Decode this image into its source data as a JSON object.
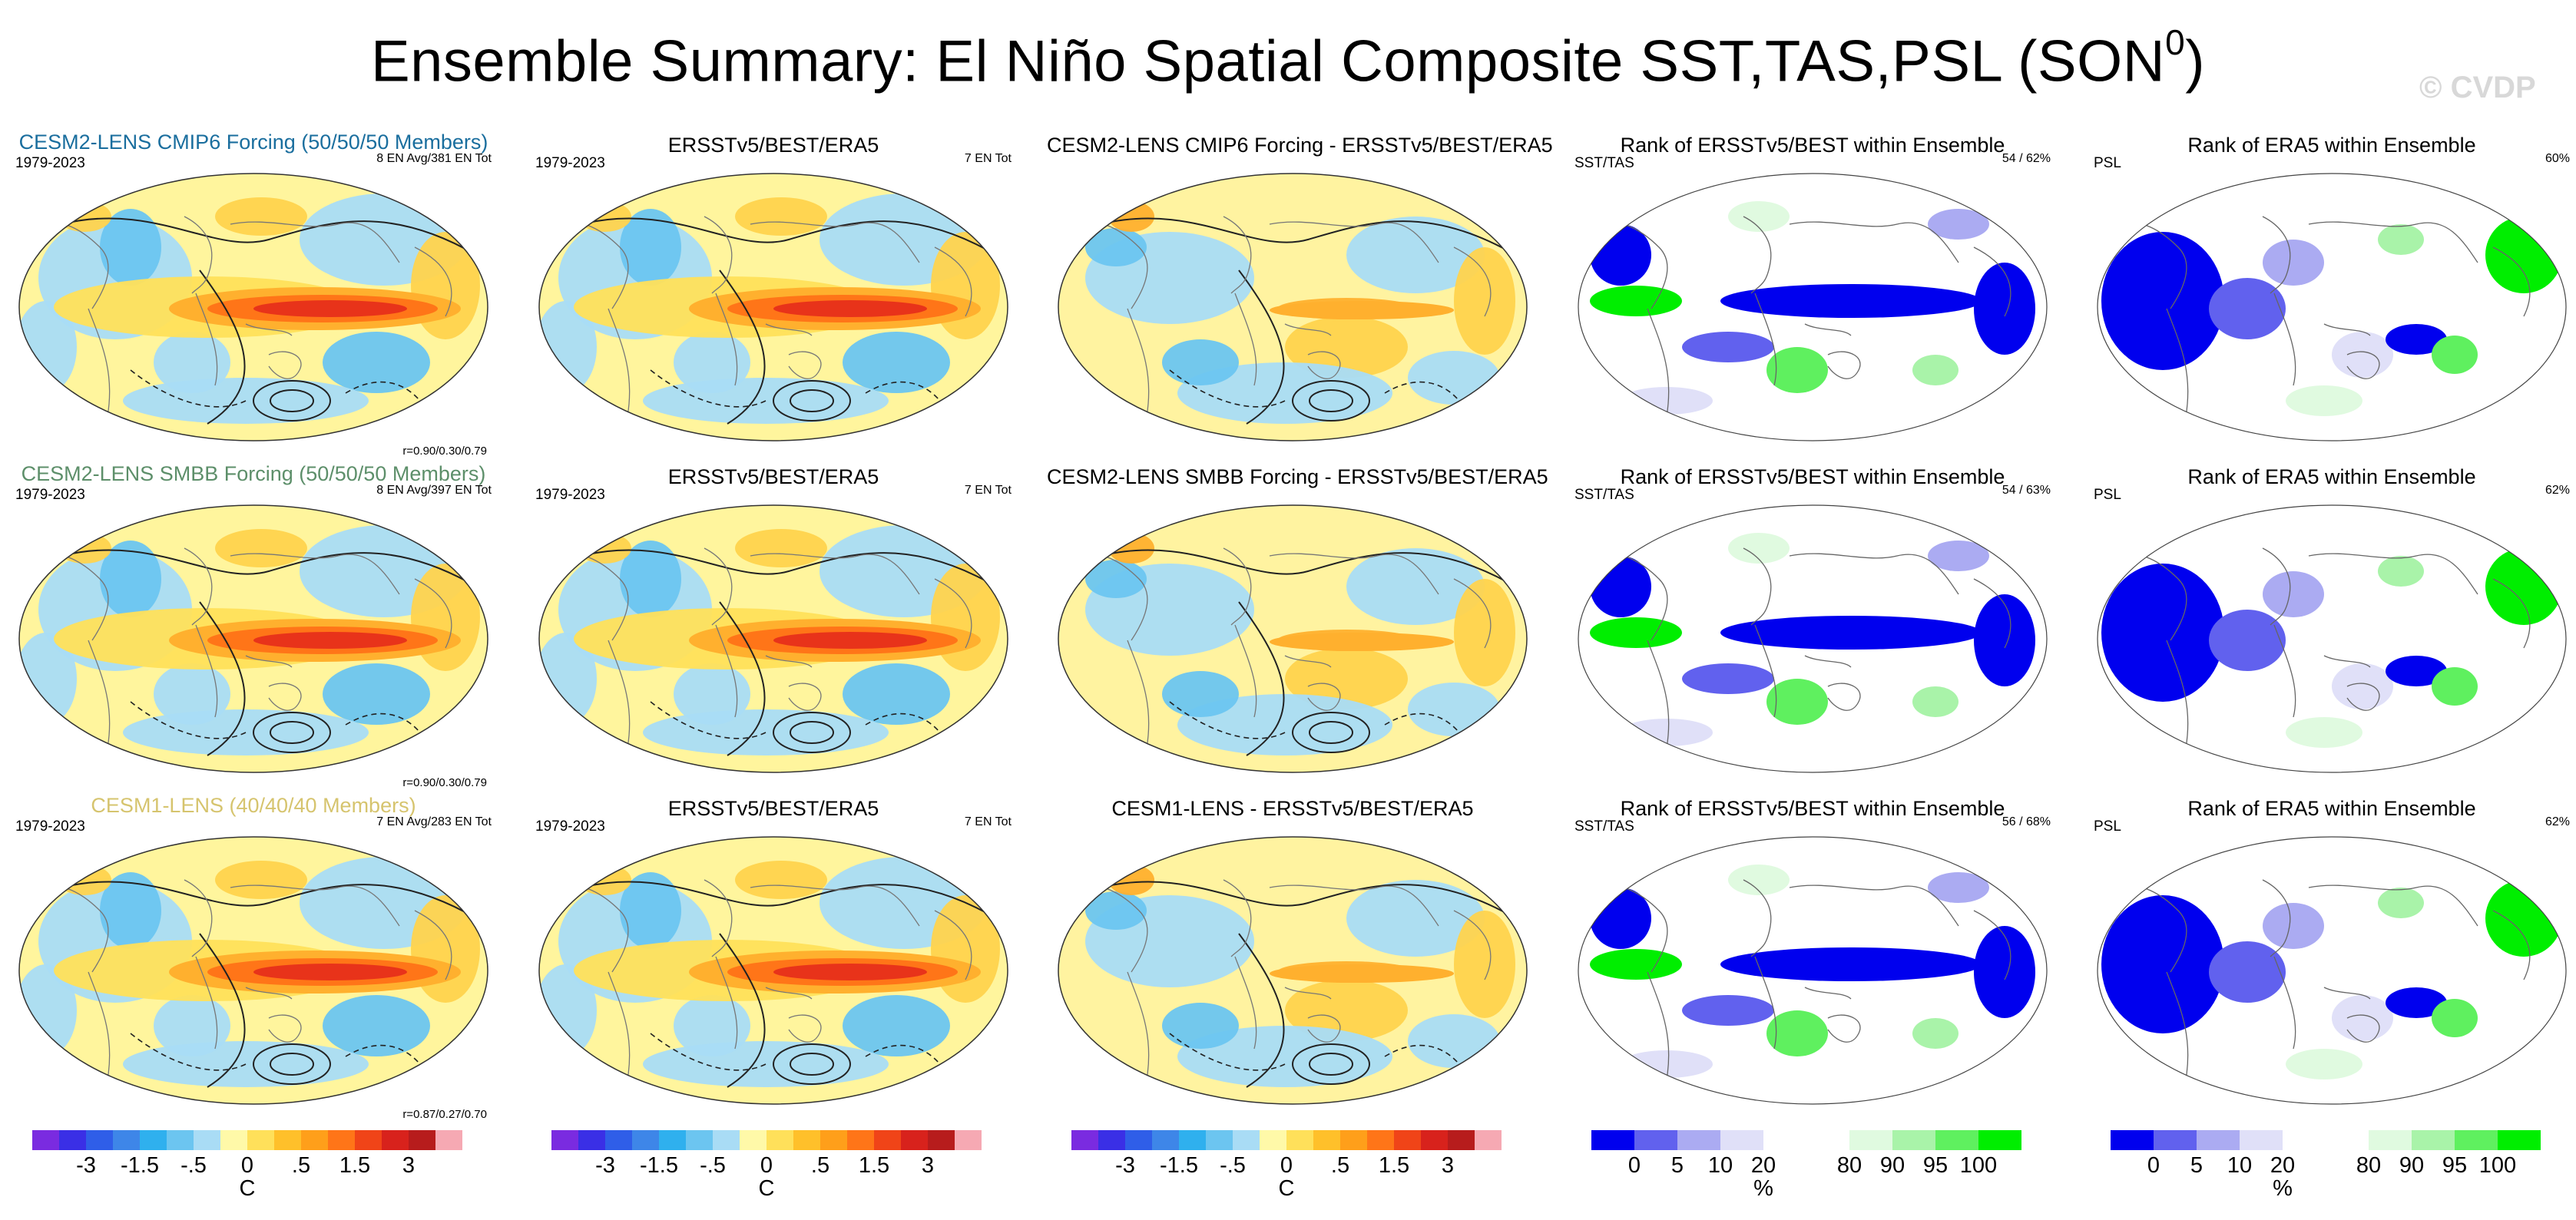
{
  "title": "Ensemble Summary: El Niño Spatial Composite SST,TAS,PSL (SON",
  "title_sup": "0",
  "title_close": ")",
  "watermark": "© CVDP",
  "rows": [
    {
      "p1": {
        "title": "CESM2-LENS CMIP6 Forcing (50/50/50 Members)",
        "period": "1979-2023",
        "count": "8 EN Avg/381 EN Tot",
        "corr": "r=0.90/0.30/0.79"
      },
      "p2": {
        "title": "ERSSTv5/BEST/ERA5",
        "period": "1979-2023",
        "count": "7 EN Tot"
      },
      "p3": {
        "title": "CESM2-LENS CMIP6 Forcing - ERSSTv5/BEST/ERA5"
      },
      "p4": {
        "title": "Rank of ERSSTv5/BEST within Ensemble",
        "var": "SST/TAS",
        "pct": "54 /  62%"
      },
      "p5": {
        "title": "Rank of ERA5 within Ensemble",
        "var": "PSL",
        "pct": "60%"
      }
    },
    {
      "p1": {
        "title": "CESM2-LENS SMBB Forcing (50/50/50 Members)",
        "period": "1979-2023",
        "count": "8 EN Avg/397 EN Tot",
        "corr": "r=0.90/0.30/0.79"
      },
      "p2": {
        "title": "ERSSTv5/BEST/ERA5",
        "period": "1979-2023",
        "count": "7 EN Tot"
      },
      "p3": {
        "title": "CESM2-LENS SMBB Forcing - ERSSTv5/BEST/ERA5"
      },
      "p4": {
        "title": "Rank of ERSSTv5/BEST within Ensemble",
        "var": "SST/TAS",
        "pct": "54 /  63%"
      },
      "p5": {
        "title": "Rank of ERA5 within Ensemble",
        "var": "PSL",
        "pct": "62%"
      }
    },
    {
      "p1": {
        "title": "CESM1-LENS (40/40/40 Members)",
        "period": "1979-2023",
        "count": "7 EN Avg/283 EN Tot",
        "corr": "r=0.87/0.27/0.70"
      },
      "p2": {
        "title": "ERSSTv5/BEST/ERA5",
        "period": "1979-2023",
        "count": "7 EN Tot"
      },
      "p3": {
        "title": "CESM1-LENS - ERSSTv5/BEST/ERA5"
      },
      "p4": {
        "title": "Rank of ERSSTv5/BEST within Ensemble",
        "var": "SST/TAS",
        "pct": "56 /  68%"
      },
      "p5": {
        "title": "Rank of ERA5 within Ensemble",
        "var": "PSL",
        "pct": "62%"
      }
    }
  ],
  "colorbars": {
    "sst": {
      "colors": [
        "#7a2be0",
        "#3a2fe6",
        "#2f5ee8",
        "#3e86e8",
        "#2fb0ee",
        "#6cc5f0",
        "#a9dcf5",
        "#fff9a8",
        "#ffe05a",
        "#ffc02a",
        "#ff9f1a",
        "#ff7518",
        "#f04418",
        "#d8221c",
        "#b71c1c",
        "#f6a9b3"
      ],
      "ticks": [
        "-3",
        "-1.5",
        "-.5",
        "0",
        ".5",
        "1.5",
        "3"
      ],
      "tick_boundaries": [
        2,
        4,
        6,
        8,
        10,
        12,
        14
      ],
      "unit": "C"
    },
    "rank": {
      "colors": [
        "#0000ee",
        "#6161ee",
        "#ababf2",
        "#e0e0f8",
        "#ffffff",
        "#ffffff",
        "#e0fae0",
        "#a9f3a9",
        "#5ff05f",
        "#00ee00"
      ],
      "ticks": [
        "0",
        "5",
        "10",
        "20",
        "80",
        "90",
        "95",
        "100"
      ],
      "tick_boundaries": [
        1,
        2,
        3,
        4,
        6,
        7,
        8,
        9
      ],
      "unit": "%"
    }
  }
}
